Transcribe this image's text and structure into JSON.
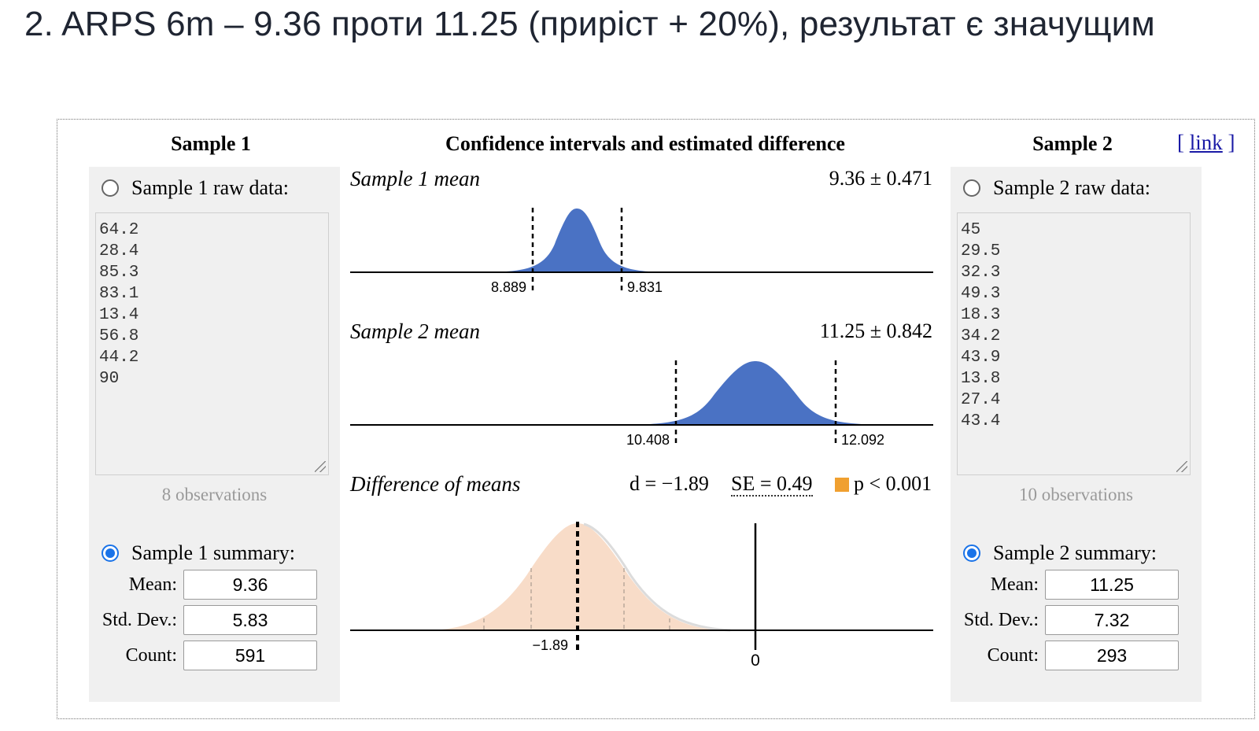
{
  "heading": "2. ARPS 6m – 9.36 проти 11.25 (приріст + 20%), результат є значущим",
  "center_title": "Confidence intervals and estimated difference",
  "link": {
    "open": "[",
    "label": "link",
    "close": "]"
  },
  "sample1": {
    "title": "Sample 1",
    "raw_label": "Sample 1 raw data:",
    "raw_selected": false,
    "raw_values": [
      "64.2",
      "28.4",
      "85.3",
      "83.1",
      "13.4",
      "56.8",
      "44.2",
      "90"
    ],
    "observations": "8 observations",
    "summary_label": "Sample 1 summary:",
    "summary_selected": true,
    "mean_label": "Mean:",
    "mean": "9.36",
    "sd_label": "Std. Dev.:",
    "sd": "5.83",
    "count_label": "Count:",
    "count": "591"
  },
  "sample2": {
    "title": "Sample 2",
    "raw_label": "Sample 2 raw data:",
    "raw_selected": false,
    "raw_values": [
      "45",
      "29.5",
      "32.3",
      "49.3",
      "18.3",
      "34.2",
      "43.9",
      "13.8",
      "27.4",
      "43.4"
    ],
    "observations": "10 observations",
    "summary_label": "Sample 2 summary:",
    "summary_selected": true,
    "mean_label": "Mean:",
    "mean": "11.25",
    "sd_label": "Std. Dev.:",
    "sd": "7.32",
    "count_label": "Count:",
    "count": "293"
  },
  "ci1": {
    "label": "Sample 1 mean",
    "value": "9.36 ± 0.471",
    "low": "8.889",
    "high": "9.831"
  },
  "ci2": {
    "label": "Sample 2 mean",
    "value": "11.25 ± 0.842",
    "low": "10.408",
    "high": "12.092"
  },
  "diff": {
    "label": "Difference of means",
    "d": "d = −1.89",
    "se": "SE = 0.49",
    "p": "p < 0.001",
    "mark": "−1.89",
    "zero": "0"
  },
  "colors": {
    "ci_fill": "#4a72c4",
    "diff_fill": "#f8dcc8",
    "p_box": "#f0a030",
    "link": "#1a1aa6",
    "radio": "#1a73e8"
  }
}
